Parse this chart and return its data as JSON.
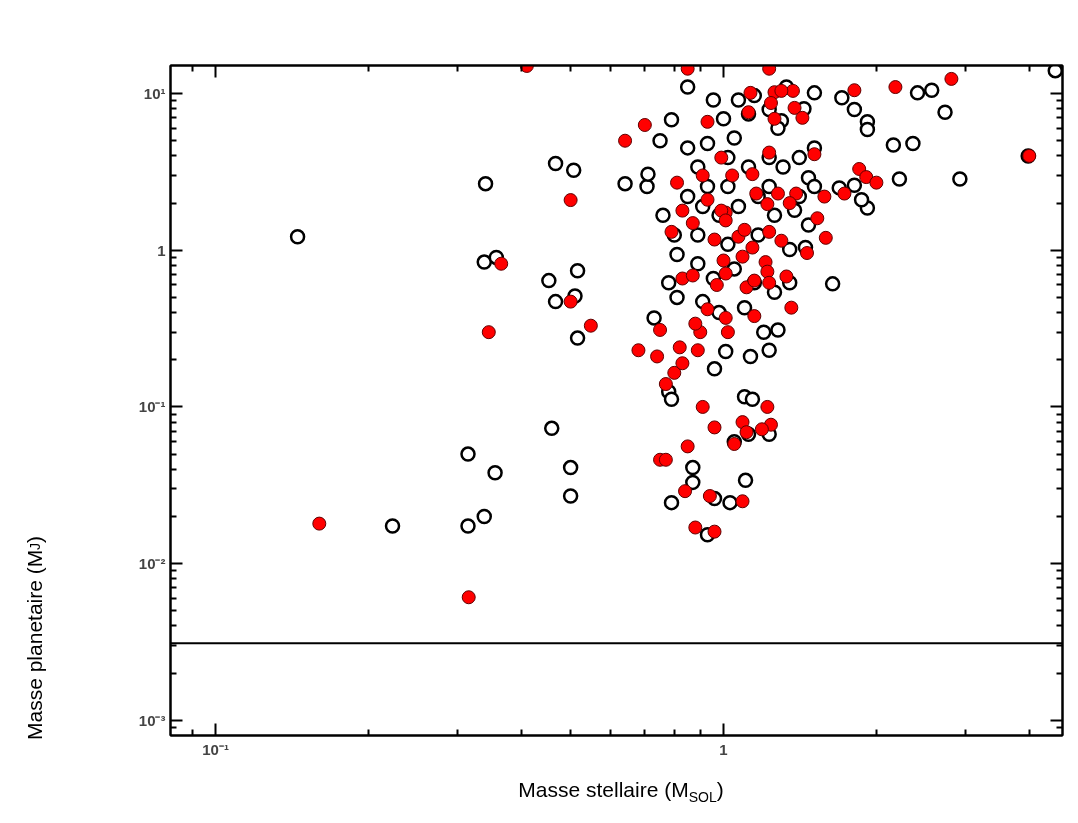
{
  "chart_data": {
    "type": "scatter",
    "xlabel": "Masse stellaire (M$_{SOL}$)",
    "ylabel": "Masse planetaire (M$_{J}$)",
    "log": "xy",
    "grid": false,
    "marker": "circle",
    "xlim": [
      0.0815,
      4.65
    ],
    "ylim": [
      0.0008,
      15.1
    ],
    "xticks": [
      {
        "value": 0.1,
        "label": "10⁻¹"
      },
      {
        "value": 1,
        "label": "1"
      }
    ],
    "yticks": [
      {
        "value": 0.001,
        "label": "10⁻³"
      },
      {
        "value": 0.01,
        "label": "10⁻²"
      },
      {
        "value": 0.1,
        "label": "10⁻¹"
      },
      {
        "value": 1,
        "label": "1"
      },
      {
        "value": 10,
        "label": "10¹"
      }
    ],
    "ref_lines": [
      {
        "axis": "y",
        "value": 0.0031,
        "color": "#000000"
      }
    ],
    "series": [
      {
        "color": "#000000",
        "x": [
          0.145,
          0.223,
          0.314,
          0.314,
          0.338,
          0.355,
          0.34,
          0.338,
          0.357,
          0.459,
          0.5,
          0.5,
          0.453,
          0.467,
          0.516,
          0.51,
          0.516,
          0.467,
          0.507,
          0.64,
          0.707,
          0.71,
          0.75,
          0.79,
          0.85,
          0.73,
          0.78,
          0.79,
          0.79,
          0.87,
          0.87,
          0.93,
          0.96,
          1.03,
          1.105,
          1.05,
          1.12,
          1.1,
          1.14,
          1.23,
          0.96,
          1.01,
          1.13,
          1.23,
          1.2,
          1.28,
          1.64,
          1.45,
          1.69,
          1.81,
          1.92,
          1.87,
          2.22,
          2.92,
          2.36,
          2.16,
          2.73,
          2.41,
          2.57,
          4.5,
          3.98,
          1.81,
          1.92,
          1.92,
          1.71,
          1.51,
          1.33,
          1.44,
          1.3,
          1.51,
          0.85,
          0.89,
          0.93,
          0.955,
          1.0,
          1.07,
          1.12,
          1.15,
          1.23,
          1.02,
          1.12,
          1.23,
          1.31,
          1.41,
          1.47,
          0.85,
          0.91,
          0.98,
          1.07,
          1.17,
          1.26,
          1.38,
          1.47,
          0.89,
          1.02,
          1.17,
          1.35,
          0.81,
          0.89,
          0.955,
          1.05,
          1.15,
          1.26,
          1.35,
          0.78,
          0.81,
          0.91,
          0.98,
          1.1,
          1.02,
          0.93,
          1.23,
          1.41,
          1.51,
          0.76,
          0.8,
          1.28,
          1.05
        ],
        "values": [
          1.22,
          0.0174,
          0.0174,
          0.05,
          0.02,
          0.038,
          2.66,
          0.84,
          0.9,
          0.073,
          0.041,
          0.027,
          0.64,
          0.47,
          0.74,
          0.51,
          0.275,
          3.58,
          3.24,
          2.66,
          2.55,
          3.06,
          5.0,
          6.8,
          11,
          0.37,
          0.125,
          0.112,
          0.0245,
          0.033,
          0.041,
          0.0153,
          0.026,
          0.0245,
          0.034,
          0.06,
          0.067,
          0.116,
          0.112,
          0.067,
          0.175,
          0.226,
          0.21,
          0.23,
          0.3,
          0.31,
          0.61,
          1.04,
          2.5,
          2.6,
          1.86,
          2.1,
          2.85,
          2.85,
          4.8,
          4.7,
          7.6,
          10.1,
          10.5,
          14,
          4.0,
          7.9,
          6.6,
          5.9,
          9.4,
          10.1,
          11,
          8.0,
          6.7,
          4.5,
          4.5,
          3.4,
          4.8,
          9.1,
          6.9,
          9.1,
          7.4,
          9.7,
          7.9,
          3.9,
          3.4,
          3.9,
          3.4,
          3.9,
          2.9,
          2.2,
          1.9,
          1.67,
          1.9,
          2.2,
          1.67,
          1.8,
          1.45,
          1.25,
          1.09,
          1.25,
          1.01,
          0.94,
          0.82,
          0.66,
          0.76,
          0.62,
          0.54,
          0.62,
          0.62,
          0.5,
          0.47,
          0.4,
          0.43,
          2.55,
          2.55,
          2.55,
          2.2,
          2.55,
          1.67,
          1.25,
          6.0,
          5.2
        ]
      },
      {
        "color": "#ff0000",
        "x": [
          0.16,
          0.315,
          0.345,
          0.365,
          0.5,
          0.5,
          0.548,
          0.41,
          0.64,
          0.7,
          0.68,
          0.74,
          0.75,
          0.77,
          0.8,
          0.83,
          0.82,
          0.89,
          0.9,
          0.88,
          0.93,
          1.01,
          0.75,
          0.77,
          0.85,
          0.84,
          0.91,
          0.88,
          0.96,
          0.94,
          0.96,
          1.05,
          1.09,
          1.11,
          1.09,
          1.24,
          1.19,
          1.22,
          0.85,
          1.23,
          1.13,
          1.26,
          1.37,
          1.38,
          1.81,
          2.18,
          2.81,
          4.0,
          1.85,
          1.91,
          2.0,
          1.73,
          1.58,
          1.53,
          1.59,
          1.46,
          1.51,
          1.43,
          1.23,
          1.26,
          1.3,
          1.24,
          1.12,
          0.93,
          0.99,
          0.81,
          0.91,
          1.04,
          1.14,
          0.93,
          1.01,
          1.16,
          1.28,
          1.39,
          1.35,
          1.22,
          0.83,
          0.87,
          0.79,
          0.96,
          1.07,
          1.1,
          1.23,
          1.3,
          1.14,
          1.0,
          1.09,
          1.21,
          0.83,
          0.87,
          1.01,
          1.22,
          1.33,
          0.97,
          1.11,
          1.15,
          1.23,
          1.36,
          1.15,
          1.02,
          0.99,
          1.01
        ],
        "values": [
          0.018,
          0.0061,
          0.3,
          0.82,
          2.09,
          0.47,
          0.33,
          15,
          5.0,
          6.3,
          0.23,
          0.21,
          0.31,
          0.14,
          0.165,
          0.19,
          0.24,
          0.23,
          0.3,
          0.34,
          0.42,
          0.37,
          0.046,
          0.046,
          0.056,
          0.029,
          0.1,
          0.017,
          0.016,
          0.027,
          0.074,
          0.058,
          0.08,
          0.069,
          0.025,
          0.077,
          0.072,
          0.1,
          14.4,
          14.4,
          10.1,
          10.2,
          10.4,
          8.1,
          10.5,
          11,
          12.4,
          4.0,
          3.3,
          2.93,
          2.7,
          2.3,
          2.2,
          1.6,
          1.2,
          0.96,
          4.1,
          7.0,
          4.2,
          6.9,
          10.4,
          8.7,
          7.6,
          6.6,
          3.9,
          2.7,
          3.0,
          3.0,
          3.06,
          2.1,
          1.74,
          2.3,
          2.3,
          2.3,
          2.0,
          1.97,
          1.79,
          1.49,
          1.31,
          1.17,
          1.22,
          1.35,
          1.31,
          1.15,
          1.04,
          0.86,
          0.91,
          0.84,
          0.66,
          0.69,
          0.71,
          0.73,
          0.68,
          0.6,
          0.58,
          0.64,
          0.62,
          0.43,
          0.38,
          0.3,
          1.79,
          1.55
        ]
      }
    ]
  }
}
